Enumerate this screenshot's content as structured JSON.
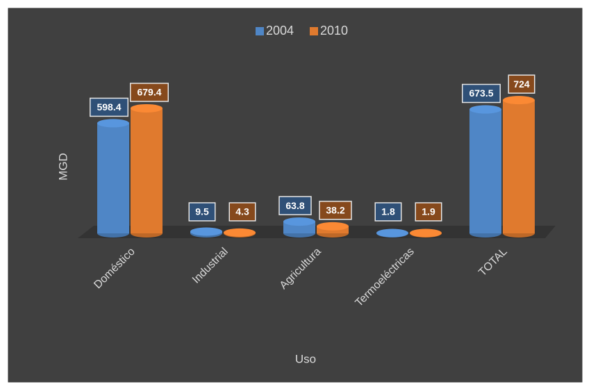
{
  "chart_data": {
    "type": "bar",
    "x_label": "Uso",
    "y_label": "MGD",
    "legend": "top",
    "categories": [
      "Doméstico",
      "Industrial",
      "Agricultura",
      "Termoeléctricas",
      "TOTAL"
    ],
    "series": [
      {
        "name": "2004",
        "color": "#4f86c6",
        "values": [
          598.4,
          9.5,
          63.8,
          1.8,
          673.5
        ]
      },
      {
        "name": "2010",
        "color": "#e07a2e",
        "values": [
          679.4,
          4.3,
          38.2,
          1.9,
          724
        ]
      }
    ]
  }
}
